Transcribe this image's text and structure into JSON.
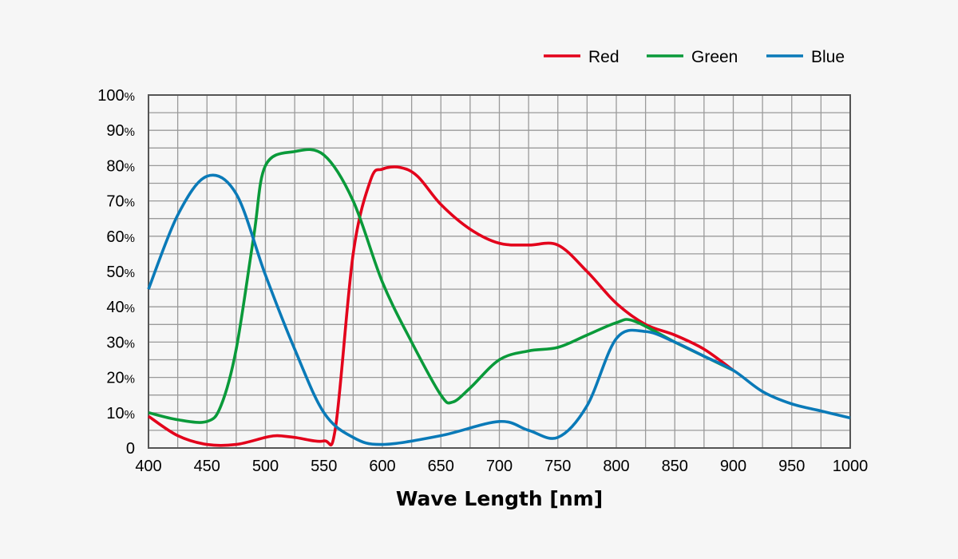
{
  "chart_data": {
    "type": "line",
    "title": "",
    "xlabel": "Wave Length [nm]",
    "ylabel": "",
    "xlim": [
      400,
      1000
    ],
    "ylim": [
      0,
      100
    ],
    "grid": true,
    "legend_position": "top-right",
    "x_ticks": [
      "400",
      "450",
      "500",
      "550",
      "600",
      "650",
      "700",
      "750",
      "800",
      "850",
      "900",
      "950",
      "1000"
    ],
    "y_ticks": [
      {
        "value": 0,
        "label": "0",
        "unit": ""
      },
      {
        "value": 10,
        "label": "10",
        "unit": "%"
      },
      {
        "value": 20,
        "label": "20",
        "unit": "%"
      },
      {
        "value": 30,
        "label": "30",
        "unit": "%"
      },
      {
        "value": 40,
        "label": "40",
        "unit": "%"
      },
      {
        "value": 50,
        "label": "50",
        "unit": "%"
      },
      {
        "value": 60,
        "label": "60",
        "unit": "%"
      },
      {
        "value": 70,
        "label": "70",
        "unit": "%"
      },
      {
        "value": 80,
        "label": "80",
        "unit": "%"
      },
      {
        "value": 90,
        "label": "90",
        "unit": "%"
      },
      {
        "value": 100,
        "label": "100",
        "unit": "%"
      }
    ],
    "series": [
      {
        "name": "Red",
        "color": "#e3001b",
        "points": [
          [
            400,
            9
          ],
          [
            425,
            3.5
          ],
          [
            450,
            1
          ],
          [
            475,
            1
          ],
          [
            500,
            3
          ],
          [
            510,
            3.5
          ],
          [
            525,
            3
          ],
          [
            550,
            2
          ],
          [
            560,
            6
          ],
          [
            575,
            55
          ],
          [
            590,
            76
          ],
          [
            600,
            79
          ],
          [
            615,
            79.5
          ],
          [
            630,
            77
          ],
          [
            650,
            69
          ],
          [
            675,
            62
          ],
          [
            700,
            58
          ],
          [
            725,
            57.5
          ],
          [
            750,
            57.5
          ],
          [
            775,
            50
          ],
          [
            800,
            41
          ],
          [
            825,
            35
          ],
          [
            850,
            32
          ],
          [
            875,
            28
          ],
          [
            900,
            22
          ]
        ]
      },
      {
        "name": "Green",
        "color": "#0a9a3a",
        "points": [
          [
            400,
            10
          ],
          [
            425,
            8
          ],
          [
            450,
            7.5
          ],
          [
            462,
            12
          ],
          [
            475,
            28
          ],
          [
            490,
            60
          ],
          [
            500,
            80
          ],
          [
            525,
            84
          ],
          [
            550,
            83
          ],
          [
            575,
            70
          ],
          [
            600,
            47
          ],
          [
            625,
            30
          ],
          [
            650,
            15
          ],
          [
            660,
            13
          ],
          [
            675,
            17
          ],
          [
            700,
            25
          ],
          [
            725,
            27.5
          ],
          [
            750,
            28.5
          ],
          [
            775,
            32
          ],
          [
            800,
            35.5
          ],
          [
            815,
            36
          ],
          [
            850,
            30
          ],
          [
            875,
            26
          ],
          [
            900,
            22
          ]
        ]
      },
      {
        "name": "Blue",
        "color": "#0a7ab8",
        "points": [
          [
            400,
            45
          ],
          [
            425,
            66
          ],
          [
            450,
            77
          ],
          [
            475,
            72
          ],
          [
            500,
            49
          ],
          [
            525,
            28
          ],
          [
            550,
            10
          ],
          [
            575,
            3
          ],
          [
            600,
            1
          ],
          [
            650,
            3.5
          ],
          [
            700,
            7.5
          ],
          [
            725,
            5
          ],
          [
            750,
            3
          ],
          [
            775,
            12
          ],
          [
            800,
            31
          ],
          [
            825,
            33
          ],
          [
            850,
            30
          ],
          [
            875,
            26
          ],
          [
            900,
            22
          ],
          [
            925,
            16
          ],
          [
            950,
            12.5
          ],
          [
            975,
            10.5
          ],
          [
            1000,
            8.5
          ]
        ]
      }
    ]
  }
}
